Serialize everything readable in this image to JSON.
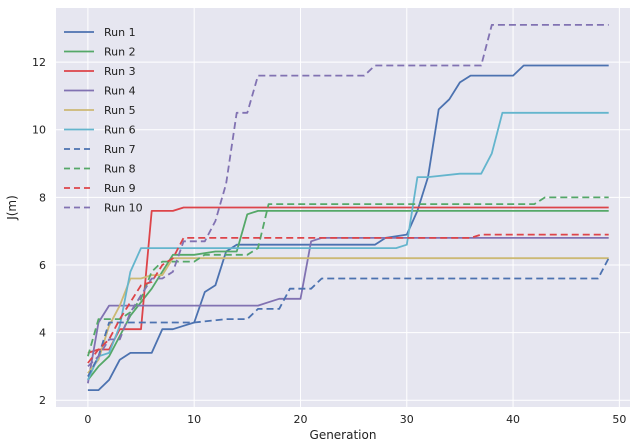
{
  "chart_data": {
    "type": "line",
    "title": "",
    "xlabel": "Generation",
    "ylabel": "J(m)",
    "xlim": [
      -3,
      51
    ],
    "ylim": [
      1.8,
      13.6
    ],
    "xticks": [
      "0",
      "10",
      "20",
      "30",
      "40",
      "50"
    ],
    "yticks": [
      "2",
      "4",
      "6",
      "8",
      "10",
      "12"
    ],
    "grid": true,
    "legend_position": "top-left",
    "background": "#e6e6f0",
    "series": [
      {
        "name": "Run 1",
        "color": "#4c72b0",
        "dash": "solid",
        "points": [
          [
            0,
            2.3
          ],
          [
            1,
            2.3
          ],
          [
            2,
            2.6
          ],
          [
            3,
            3.2
          ],
          [
            4,
            3.4
          ],
          [
            5,
            3.4
          ],
          [
            6,
            3.4
          ],
          [
            7,
            4.1
          ],
          [
            8,
            4.1
          ],
          [
            9,
            4.2
          ],
          [
            10,
            4.3
          ],
          [
            11,
            5.2
          ],
          [
            12,
            5.4
          ],
          [
            13,
            6.4
          ],
          [
            14,
            6.6
          ],
          [
            15,
            6.6
          ],
          [
            17,
            6.6
          ],
          [
            20,
            6.6
          ],
          [
            25,
            6.6
          ],
          [
            27,
            6.6
          ],
          [
            28,
            6.8
          ],
          [
            30,
            6.9
          ],
          [
            31,
            7.6
          ],
          [
            32,
            8.6
          ],
          [
            33,
            10.6
          ],
          [
            34,
            10.9
          ],
          [
            35,
            11.4
          ],
          [
            36,
            11.6
          ],
          [
            38,
            11.6
          ],
          [
            40,
            11.6
          ],
          [
            41,
            11.9
          ],
          [
            45,
            11.9
          ],
          [
            49,
            11.9
          ]
        ]
      },
      {
        "name": "Run 2",
        "color": "#55a868",
        "dash": "solid",
        "points": [
          [
            0,
            2.6
          ],
          [
            1,
            3.0
          ],
          [
            2,
            3.3
          ],
          [
            3,
            3.9
          ],
          [
            4,
            4.5
          ],
          [
            5,
            4.9
          ],
          [
            6,
            5.3
          ],
          [
            7,
            5.8
          ],
          [
            8,
            6.3
          ],
          [
            9,
            6.3
          ],
          [
            10,
            6.3
          ],
          [
            12,
            6.4
          ],
          [
            13,
            6.4
          ],
          [
            14,
            6.4
          ],
          [
            15,
            7.5
          ],
          [
            16,
            7.6
          ],
          [
            20,
            7.6
          ],
          [
            30,
            7.6
          ],
          [
            40,
            7.6
          ],
          [
            49,
            7.6
          ]
        ]
      },
      {
        "name": "Run 3",
        "color": "#dd4449",
        "dash": "solid",
        "points": [
          [
            0,
            3.4
          ],
          [
            1,
            3.5
          ],
          [
            2,
            3.5
          ],
          [
            3,
            4.1
          ],
          [
            4,
            4.1
          ],
          [
            5,
            4.1
          ],
          [
            6,
            7.6
          ],
          [
            7,
            7.6
          ],
          [
            8,
            7.6
          ],
          [
            9,
            7.7
          ],
          [
            10,
            7.7
          ],
          [
            20,
            7.7
          ],
          [
            30,
            7.7
          ],
          [
            40,
            7.7
          ],
          [
            49,
            7.7
          ]
        ]
      },
      {
        "name": "Run 4",
        "color": "#8172b2",
        "dash": "solid",
        "points": [
          [
            0,
            2.5
          ],
          [
            1,
            4.3
          ],
          [
            2,
            4.8
          ],
          [
            3,
            4.8
          ],
          [
            5,
            4.8
          ],
          [
            10,
            4.8
          ],
          [
            16,
            4.8
          ],
          [
            17,
            4.9
          ],
          [
            18,
            5.0
          ],
          [
            19,
            5.0
          ],
          [
            20,
            5.0
          ],
          [
            21,
            6.7
          ],
          [
            22,
            6.8
          ],
          [
            30,
            6.8
          ],
          [
            40,
            6.8
          ],
          [
            48,
            6.8
          ],
          [
            49,
            6.8
          ]
        ]
      },
      {
        "name": "Run 5",
        "color": "#ccb974",
        "dash": "solid",
        "points": [
          [
            0,
            2.8
          ],
          [
            1,
            3.2
          ],
          [
            2,
            4.2
          ],
          [
            3,
            4.8
          ],
          [
            4,
            5.6
          ],
          [
            5,
            5.6
          ],
          [
            6,
            5.7
          ],
          [
            7,
            5.7
          ],
          [
            8,
            6.2
          ],
          [
            9,
            6.2
          ],
          [
            10,
            6.2
          ],
          [
            20,
            6.2
          ],
          [
            30,
            6.2
          ],
          [
            31,
            6.2
          ],
          [
            39,
            6.2
          ],
          [
            40,
            6.2
          ],
          [
            49,
            6.2
          ]
        ]
      },
      {
        "name": "Run 6",
        "color": "#64b5cd",
        "dash": "solid",
        "points": [
          [
            0,
            2.6
          ],
          [
            1,
            3.3
          ],
          [
            2,
            3.4
          ],
          [
            3,
            4.2
          ],
          [
            4,
            5.8
          ],
          [
            5,
            6.5
          ],
          [
            8,
            6.5
          ],
          [
            10,
            6.5
          ],
          [
            20,
            6.5
          ],
          [
            25,
            6.5
          ],
          [
            29,
            6.5
          ],
          [
            30,
            6.6
          ],
          [
            31,
            8.6
          ],
          [
            32,
            8.6
          ],
          [
            35,
            8.7
          ],
          [
            37,
            8.7
          ],
          [
            38,
            9.3
          ],
          [
            39,
            10.5
          ],
          [
            40,
            10.5
          ],
          [
            49,
            10.5
          ]
        ]
      },
      {
        "name": "Run 7",
        "color": "#4c72b0",
        "dash": "dashed",
        "points": [
          [
            0,
            2.7
          ],
          [
            1,
            3.3
          ],
          [
            2,
            4.3
          ],
          [
            5,
            4.3
          ],
          [
            10,
            4.3
          ],
          [
            13,
            4.4
          ],
          [
            15,
            4.4
          ],
          [
            16,
            4.7
          ],
          [
            18,
            4.7
          ],
          [
            19,
            5.3
          ],
          [
            20,
            5.3
          ],
          [
            21,
            5.3
          ],
          [
            22,
            5.6
          ],
          [
            25,
            5.6
          ],
          [
            30,
            5.6
          ],
          [
            35,
            5.6
          ],
          [
            40,
            5.6
          ],
          [
            45,
            5.6
          ],
          [
            48,
            5.6
          ],
          [
            49,
            6.2
          ]
        ]
      },
      {
        "name": "Run 8",
        "color": "#55a868",
        "dash": "dashed",
        "points": [
          [
            0,
            3.3
          ],
          [
            1,
            4.4
          ],
          [
            2,
            4.4
          ],
          [
            3,
            4.4
          ],
          [
            4,
            4.6
          ],
          [
            5,
            5.0
          ],
          [
            6,
            5.8
          ],
          [
            7,
            6.1
          ],
          [
            9,
            6.1
          ],
          [
            10,
            6.1
          ],
          [
            11,
            6.3
          ],
          [
            15,
            6.3
          ],
          [
            16,
            6.5
          ],
          [
            17,
            7.8
          ],
          [
            20,
            7.8
          ],
          [
            30,
            7.8
          ],
          [
            40,
            7.8
          ],
          [
            42,
            7.8
          ],
          [
            43,
            8.0
          ],
          [
            49,
            8.0
          ]
        ]
      },
      {
        "name": "Run 9",
        "color": "#dd4449",
        "dash": "dashed",
        "points": [
          [
            0,
            3.1
          ],
          [
            1,
            3.5
          ],
          [
            2,
            3.8
          ],
          [
            3,
            4.4
          ],
          [
            4,
            4.9
          ],
          [
            5,
            5.4
          ],
          [
            6,
            5.5
          ],
          [
            7,
            6.0
          ],
          [
            8,
            6.2
          ],
          [
            9,
            6.8
          ],
          [
            10,
            6.8
          ],
          [
            12,
            6.8
          ],
          [
            14,
            6.8
          ],
          [
            15,
            6.8
          ],
          [
            20,
            6.8
          ],
          [
            30,
            6.8
          ],
          [
            36,
            6.8
          ],
          [
            37,
            6.9
          ],
          [
            49,
            6.9
          ]
        ]
      },
      {
        "name": "Run 10",
        "color": "#8172b2",
        "dash": "dashed",
        "points": [
          [
            0,
            3.0
          ],
          [
            1,
            3.3
          ],
          [
            2,
            3.8
          ],
          [
            3,
            3.8
          ],
          [
            4,
            4.6
          ],
          [
            5,
            5.1
          ],
          [
            6,
            5.6
          ],
          [
            7,
            5.6
          ],
          [
            8,
            5.8
          ],
          [
            9,
            6.7
          ],
          [
            10,
            6.7
          ],
          [
            11,
            6.7
          ],
          [
            12,
            7.3
          ],
          [
            13,
            8.4
          ],
          [
            14,
            10.5
          ],
          [
            15,
            10.5
          ],
          [
            16,
            11.6
          ],
          [
            17,
            11.6
          ],
          [
            20,
            11.6
          ],
          [
            25,
            11.6
          ],
          [
            26,
            11.6
          ],
          [
            27,
            11.9
          ],
          [
            30,
            11.9
          ],
          [
            35,
            11.9
          ],
          [
            37,
            11.9
          ],
          [
            38,
            13.1
          ],
          [
            40,
            13.1
          ],
          [
            45,
            13.1
          ],
          [
            49,
            13.1
          ]
        ]
      }
    ]
  }
}
